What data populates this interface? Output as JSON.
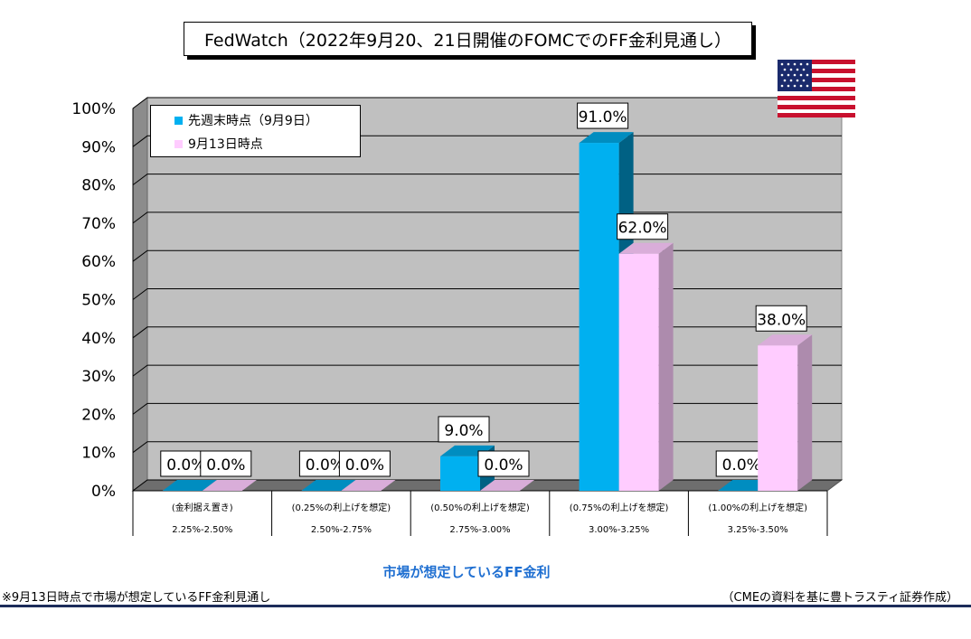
{
  "title": "FedWatch（2022年9月20、21日開催のFOMCでのFF金利見通し）",
  "colors": {
    "series1": "#00B0F0",
    "series2": "#FFCCFF",
    "plot_bg": "#C0C0C0",
    "xaxis_title": "#1F6FD1"
  },
  "chart_data": {
    "type": "bar",
    "categories": [
      {
        "label": "(金利据え置き)",
        "range": "2.25%-2.50%"
      },
      {
        "label": "(0.25%の利上げを想定)",
        "range": "2.50%-2.75%"
      },
      {
        "label": "(0.50%の利上げを想定)",
        "range": "2.75%-3.00%"
      },
      {
        "label": "(0.75%の利上げを想定)",
        "range": "3.00%-3.25%"
      },
      {
        "label": "(1.00%の利上げを想定)",
        "range": "3.25%-3.50%"
      }
    ],
    "series": [
      {
        "name": "先週末時点（9月9日）",
        "values": [
          0.0,
          0.0,
          9.0,
          91.0,
          0.0
        ]
      },
      {
        "name": "9月13日時点",
        "values": [
          0.0,
          0.0,
          0.0,
          62.0,
          38.0
        ]
      }
    ],
    "data_labels": [
      [
        "0.0%",
        "0.0%",
        "9.0%",
        "91.0%",
        "0.0%"
      ],
      [
        "0.0%",
        "0.0%",
        "0.0%",
        "62.0%",
        "38.0%"
      ]
    ],
    "yticks": [
      "0%",
      "10%",
      "20%",
      "30%",
      "40%",
      "50%",
      "60%",
      "70%",
      "80%",
      "90%",
      "100%"
    ],
    "ylim": [
      0,
      100
    ],
    "xlabel": "市場が想定しているFF金利",
    "legend_position": "top-left",
    "grid": true
  },
  "footnote_left": "※9月13日時点で市場が想定しているFF金利見通し",
  "footnote_right": "（CMEの資料を基に豊トラスティ証券作成）"
}
